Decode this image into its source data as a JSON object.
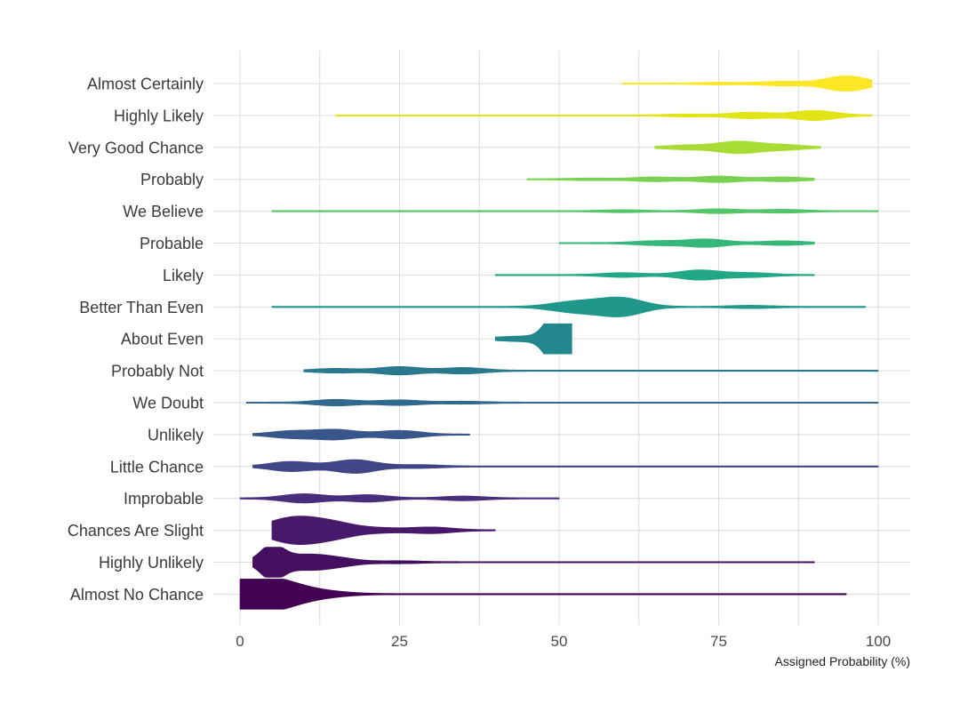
{
  "chart_data": {
    "type": "violin",
    "title": "",
    "xlabel": "Assigned Probability (%)",
    "ylabel": "",
    "xlim": [
      0,
      100
    ],
    "x_ticks": [
      0,
      25,
      50,
      75,
      100
    ],
    "grid": true,
    "legend": "none",
    "categories": [
      "Almost Certainly",
      "Highly Likely",
      "Very Good Chance",
      "Probably",
      "We Believe",
      "Probable",
      "Likely",
      "Better Than Even",
      "About Even",
      "Probably Not",
      "We Doubt",
      "Unlikely",
      "Little Chance",
      "Improbable",
      "Chances Are Slight",
      "Highly Unlikely",
      "Almost No Chance"
    ],
    "colors": [
      "#fde725",
      "#e2e418",
      "#a8db34",
      "#7ad151",
      "#54c568",
      "#35b779",
      "#22a884",
      "#1f988b",
      "#23888e",
      "#2a788e",
      "#31688e",
      "#39568c",
      "#414487",
      "#472d7b",
      "#48186a",
      "#440f5f",
      "#440154"
    ],
    "series": [
      {
        "name": "Almost Certainly",
        "range": [
          60,
          99
        ],
        "peaks": [
          [
            95,
            8
          ],
          [
            85,
            2
          ],
          [
            75,
            0.8
          ]
        ]
      },
      {
        "name": "Highly Likely",
        "range": [
          15,
          99
        ],
        "peaks": [
          [
            90,
            5
          ],
          [
            80,
            3
          ],
          [
            70,
            1
          ]
        ]
      },
      {
        "name": "Very Good Chance",
        "range": [
          65,
          91
        ],
        "peaks": [
          [
            78,
            6
          ],
          [
            70,
            2
          ],
          [
            85,
            2.5
          ]
        ]
      },
      {
        "name": "Probably",
        "range": [
          45,
          90
        ],
        "peaks": [
          [
            75,
            3
          ],
          [
            65,
            2
          ],
          [
            85,
            2
          ],
          [
            55,
            0.8
          ]
        ]
      },
      {
        "name": "We Believe",
        "range": [
          5,
          100
        ],
        "peaks": [
          [
            75,
            2
          ],
          [
            60,
            1
          ],
          [
            85,
            1.5
          ]
        ]
      },
      {
        "name": "Probable",
        "range": [
          50,
          90
        ],
        "peaks": [
          [
            73,
            4
          ],
          [
            65,
            2
          ],
          [
            85,
            2
          ]
        ]
      },
      {
        "name": "Likely",
        "range": [
          40,
          90
        ],
        "peaks": [
          [
            72,
            5
          ],
          [
            80,
            2
          ],
          [
            60,
            2
          ]
        ]
      },
      {
        "name": "Better Than Even",
        "range": [
          5,
          98
        ],
        "peaks": [
          [
            60,
            9
          ],
          [
            55,
            4
          ],
          [
            51,
            3.5
          ],
          [
            80,
            1.2
          ]
        ]
      },
      {
        "name": "About Even",
        "range": [
          40,
          52
        ],
        "peaks": [
          [
            50,
            36
          ],
          [
            45,
            2
          ],
          [
            41,
            0.8
          ]
        ]
      },
      {
        "name": "Probably Not",
        "range": [
          10,
          100
        ],
        "peaks": [
          [
            25,
            4
          ],
          [
            35,
            3
          ],
          [
            15,
            2
          ]
        ]
      },
      {
        "name": "We Doubt",
        "range": [
          1,
          100
        ],
        "peaks": [
          [
            15,
            3
          ],
          [
            25,
            2.5
          ],
          [
            35,
            1
          ]
        ]
      },
      {
        "name": "Unlikely",
        "range": [
          2,
          36
        ],
        "peaks": [
          [
            15,
            5
          ],
          [
            25,
            4
          ],
          [
            8,
            3.5
          ]
        ]
      },
      {
        "name": "Little Chance",
        "range": [
          2,
          100
        ],
        "peaks": [
          [
            18,
            7
          ],
          [
            8,
            5
          ],
          [
            28,
            1.5
          ]
        ]
      },
      {
        "name": "Improbable",
        "range": [
          0,
          50
        ],
        "peaks": [
          [
            10,
            4.5
          ],
          [
            20,
            3.5
          ],
          [
            35,
            2
          ]
        ]
      },
      {
        "name": "Chances Are Slight",
        "range": [
          5,
          40
        ],
        "peaks": [
          [
            10,
            10
          ],
          [
            15,
            7
          ],
          [
            6,
            7
          ],
          [
            30,
            3
          ],
          [
            22,
            2
          ]
        ]
      },
      {
        "name": "Highly Unlikely",
        "range": [
          2,
          90
        ],
        "peaks": [
          [
            5,
            18
          ],
          [
            10,
            7
          ],
          [
            15,
            4
          ],
          [
            25,
            1
          ]
        ]
      },
      {
        "name": "Almost No Chance",
        "range": [
          0,
          95
        ],
        "peaks": [
          [
            2,
            24
          ],
          [
            5,
            15
          ],
          [
            10,
            5
          ],
          [
            15,
            1.5
          ]
        ]
      }
    ]
  }
}
